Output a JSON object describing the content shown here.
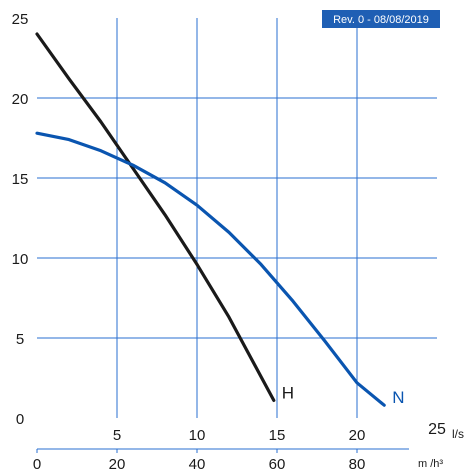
{
  "chart_data": {
    "type": "line",
    "revision_label": "Rev. 0 - 08/08/2019",
    "x_unit_primary": "l/s",
    "x_unit_secondary": "m /h³",
    "xlim": [
      0,
      25
    ],
    "ylim": [
      0,
      25
    ],
    "x_ticks": [
      5,
      10,
      15,
      20,
      25
    ],
    "y_ticks": [
      0,
      5,
      10,
      15,
      20,
      25
    ],
    "secondary_ticks": [
      0,
      20,
      40,
      60,
      80
    ],
    "grid": true,
    "colors": {
      "H": "#1a1a1a",
      "N": "#0a55b0",
      "grid": "#2a6fd0",
      "badge": "#1f5fb4",
      "badge_text": "#ffffff"
    },
    "series": [
      {
        "name": "H",
        "x": [
          0,
          2,
          4,
          6,
          8,
          10,
          12,
          14.8
        ],
        "y": [
          24.0,
          21.2,
          18.5,
          15.6,
          12.7,
          9.6,
          6.3,
          1.1
        ]
      },
      {
        "name": "N",
        "x": [
          0,
          2,
          4,
          6,
          8,
          10,
          12,
          14,
          16,
          18,
          20,
          21.7
        ],
        "y": [
          17.8,
          17.4,
          16.7,
          15.8,
          14.7,
          13.3,
          11.6,
          9.6,
          7.3,
          4.8,
          2.2,
          0.8
        ]
      }
    ]
  }
}
